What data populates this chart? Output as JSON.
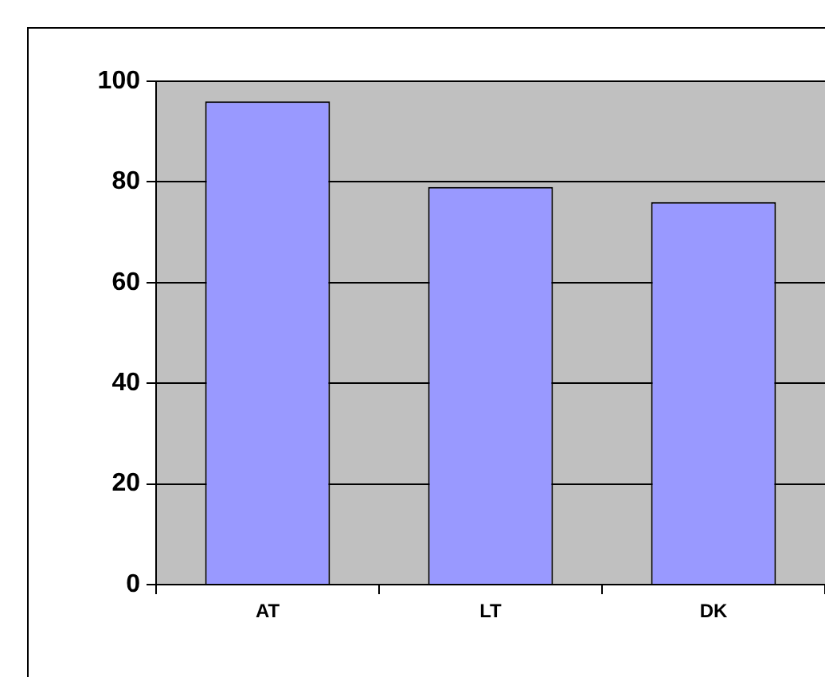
{
  "chart_data": {
    "type": "bar",
    "categories": [
      "AT",
      "LT",
      "DK"
    ],
    "values": [
      96,
      79,
      76
    ],
    "color": "#9999ff",
    "ylim": [
      0,
      100
    ],
    "yticks": [
      0,
      20,
      40,
      60,
      80,
      100
    ],
    "grid": "y"
  }
}
